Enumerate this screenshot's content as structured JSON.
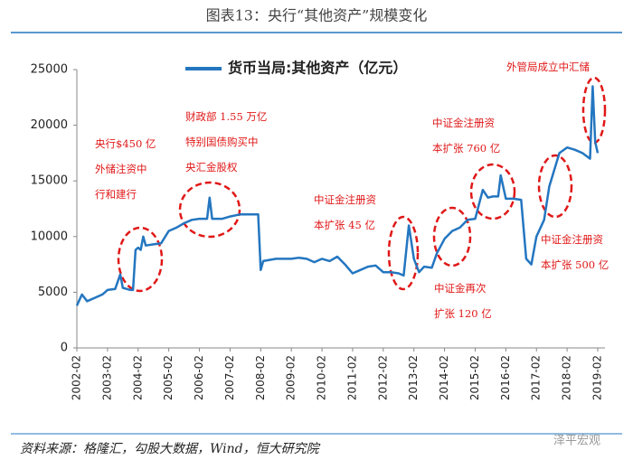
{
  "chart_data": {
    "type": "line",
    "title": "图表13：央行“其他资产”规模变化",
    "source": "资料来源：格隆汇，勾股大数据，Wind，恒大研究院",
    "watermark": "泽平宏观",
    "x": [
      "2002-02",
      "2002-04",
      "2002-06",
      "2002-09",
      "2002-12",
      "2003-02",
      "2003-05",
      "2003-07",
      "2003-08",
      "2003-11",
      "2003-12",
      "2004-01",
      "2004-02",
      "2004-03",
      "2004-04",
      "2004-05",
      "2004-08",
      "2004-11",
      "2005-02",
      "2005-05",
      "2005-08",
      "2005-11",
      "2006-02",
      "2006-05",
      "2006-06",
      "2006-07",
      "2006-11",
      "2007-02",
      "2007-06",
      "2007-11",
      "2008-01",
      "2008-02",
      "2008-03",
      "2008-08",
      "2008-11",
      "2009-02",
      "2009-05",
      "2009-08",
      "2009-11",
      "2010-02",
      "2010-05",
      "2010-08",
      "2010-11",
      "2011-02",
      "2011-05",
      "2011-08",
      "2011-11",
      "2012-02",
      "2012-05",
      "2012-08",
      "2012-10",
      "2012-12",
      "2013-02",
      "2013-04",
      "2013-06",
      "2013-09",
      "2013-11",
      "2014-02",
      "2014-05",
      "2014-08",
      "2014-11",
      "2015-02",
      "2015-05",
      "2015-07",
      "2015-09",
      "2015-11",
      "2015-12",
      "2016-02",
      "2016-05",
      "2016-08",
      "2016-10",
      "2016-12",
      "2017-02",
      "2017-05",
      "2017-07",
      "2017-09",
      "2017-11",
      "2018-02",
      "2018-05",
      "2018-08",
      "2018-11",
      "2018-12",
      "2019-01",
      "2019-02"
    ],
    "series": [
      {
        "name": "货币当局:其他资产（亿元）",
        "color": "#2476c0",
        "values": [
          3800,
          4800,
          4200,
          4500,
          4800,
          5200,
          5300,
          6600,
          5400,
          5200,
          5200,
          8800,
          9000,
          8800,
          10000,
          9200,
          9300,
          9400,
          10500,
          10800,
          11200,
          11500,
          11600,
          11600,
          13500,
          11600,
          11600,
          11800,
          12000,
          12000,
          12000,
          7000,
          7800,
          8000,
          8000,
          8000,
          8100,
          8000,
          7700,
          8000,
          7800,
          8200,
          7500,
          6700,
          7000,
          7300,
          7400,
          6800,
          6800,
          6700,
          6500,
          11000,
          8000,
          6800,
          7300,
          7200,
          8500,
          9800,
          10500,
          10800,
          11500,
          11600,
          14200,
          13500,
          13600,
          13600,
          15500,
          13400,
          13400,
          13300,
          8000,
          7500,
          10000,
          11500,
          14500,
          16000,
          17500,
          18000,
          17800,
          17500,
          17000,
          23500,
          18500,
          17500
        ]
      }
    ],
    "xticks": [
      "2002-02",
      "2003-02",
      "2004-02",
      "2005-02",
      "2006-02",
      "2007-02",
      "2008-02",
      "2009-02",
      "2010-02",
      "2011-02",
      "2012-02",
      "2013-02",
      "2014-02",
      "2015-02",
      "2016-02",
      "2017-02",
      "2018-02",
      "2019-02"
    ],
    "ylim": [
      0,
      25000
    ],
    "yticks": [
      0,
      5000,
      10000,
      15000,
      20000,
      25000
    ],
    "annotations": [
      [
        "央行$450 亿",
        "外储注资中",
        "行和建行"
      ],
      [
        "财政部 1.55 万亿",
        "特别国债购买中",
        "央汇金股权"
      ],
      [
        "中证金注册资",
        "本扩张 45 亿"
      ],
      [
        "中证金再次",
        "扩张 120 亿"
      ],
      [
        "中证金注册资",
        "本扩张 760 亿"
      ],
      [
        "中证金注册资",
        "本扩张 500 亿"
      ],
      [
        "外管局成立中汇储"
      ]
    ]
  }
}
